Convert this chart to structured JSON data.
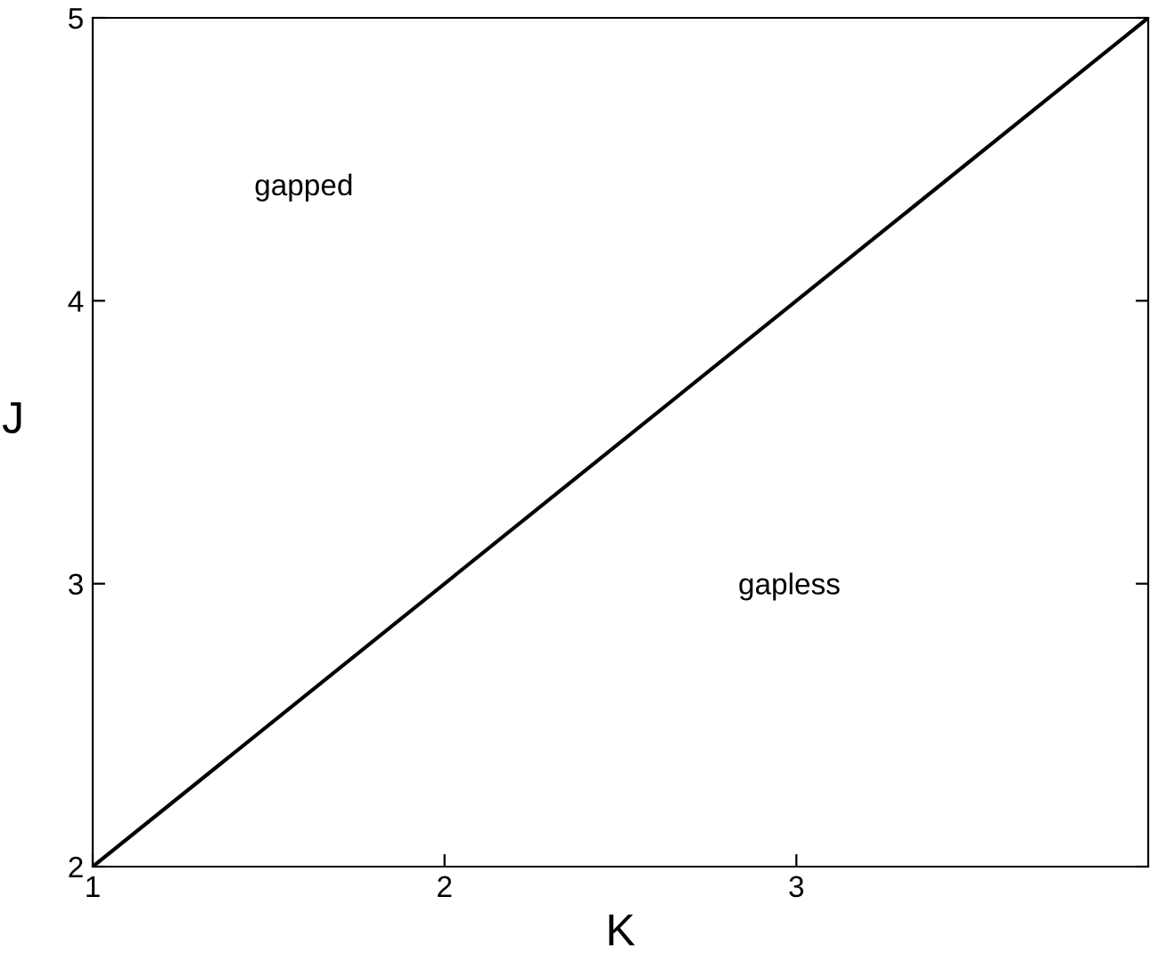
{
  "chart_data": {
    "type": "line",
    "xlabel": "K",
    "ylabel": "J",
    "x": [
      1,
      4
    ],
    "series": [
      {
        "color": "#000000",
        "values": [
          2,
          5
        ]
      }
    ],
    "xlim": [
      1,
      4
    ],
    "ylim": [
      2,
      5
    ],
    "xticks": [
      1,
      2,
      3
    ],
    "yticks": [
      2,
      3,
      4,
      5
    ],
    "annotations": [
      "gapped",
      "gapless"
    ],
    "grid": false,
    "legend": false
  }
}
